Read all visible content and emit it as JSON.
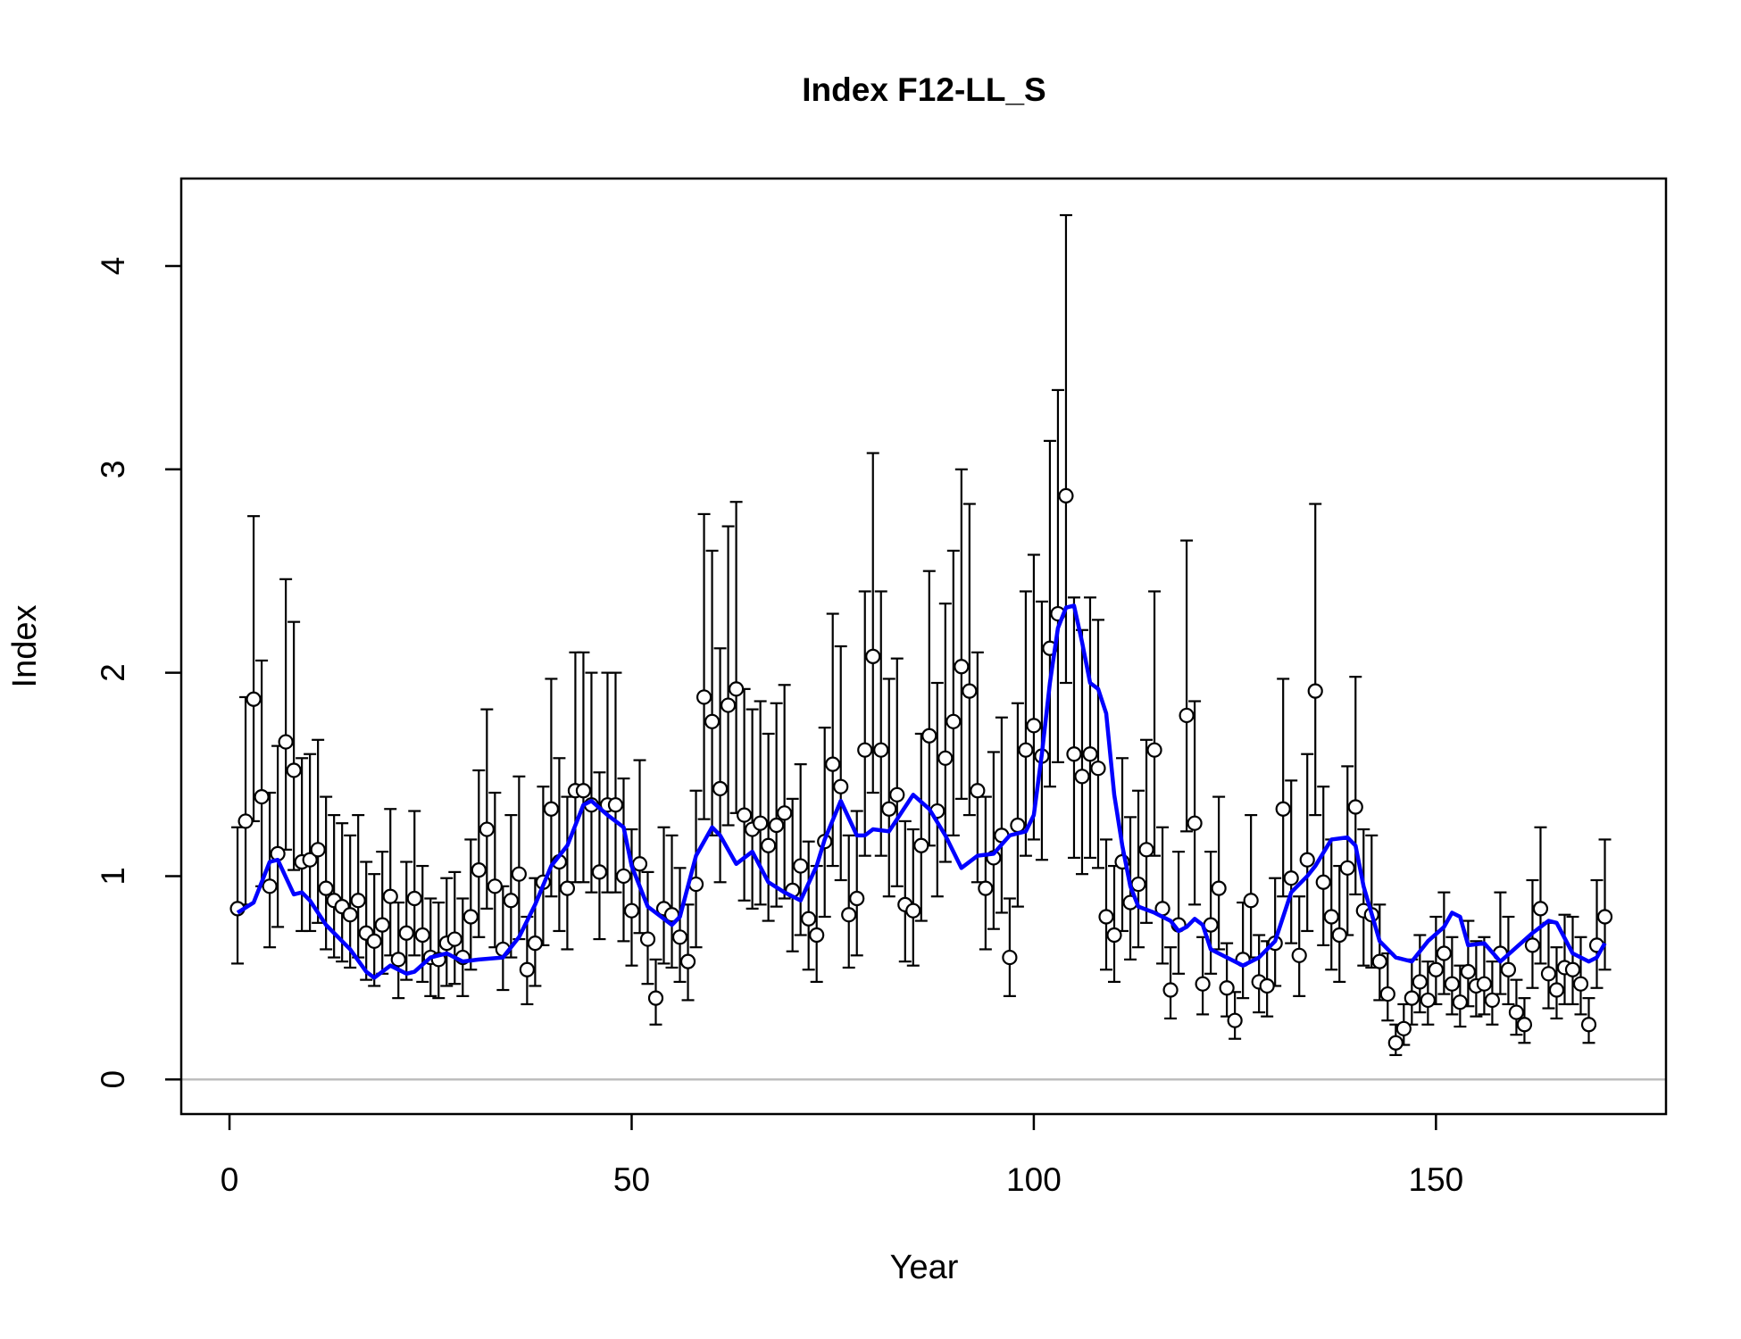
{
  "chart_data": {
    "type": "scatter",
    "title": "Index F12-LL_S",
    "xlabel": "Year",
    "ylabel": "Index",
    "xlim": [
      -6,
      178.6
    ],
    "ylim": [
      -0.17,
      4.43
    ],
    "xticks": [
      0,
      50,
      100,
      150
    ],
    "yticks": [
      0,
      1,
      2,
      3,
      4
    ],
    "reference_line": {
      "value": 0,
      "color": "#bebebe"
    },
    "series": [
      {
        "type": "scatter",
        "color": "#000000",
        "x": [
          1,
          2,
          3,
          4,
          5,
          6,
          7,
          8,
          9,
          10,
          11,
          12,
          13,
          14,
          15,
          16,
          17,
          18,
          19,
          20,
          21,
          22,
          23,
          24,
          25,
          26,
          27,
          28,
          29,
          30,
          31,
          32,
          33,
          34,
          35,
          36,
          37,
          38,
          39,
          40,
          41,
          42,
          43,
          44,
          45,
          46,
          47,
          48,
          49,
          50,
          51,
          52,
          53,
          54,
          55,
          56,
          57,
          58,
          59,
          60,
          61,
          62,
          63,
          64,
          65,
          66,
          67,
          68,
          69,
          70,
          71,
          72,
          73,
          74,
          75,
          76,
          77,
          78,
          79,
          80,
          81,
          82,
          83,
          84,
          85,
          86,
          87,
          88,
          89,
          90,
          91,
          92,
          93,
          94,
          95,
          96,
          97,
          98,
          99,
          100,
          101,
          102,
          103,
          104,
          105,
          106,
          107,
          108,
          109,
          110,
          111,
          112,
          113,
          114,
          115,
          116,
          117,
          118,
          119,
          120,
          121,
          122,
          123,
          124,
          125,
          126,
          127,
          128,
          129,
          130,
          131,
          132,
          133,
          134,
          135,
          136,
          137,
          138,
          139,
          140,
          141,
          142,
          143,
          144,
          145,
          146,
          147,
          148,
          149,
          150,
          151,
          152,
          153,
          154,
          155,
          156,
          157,
          158,
          159,
          160,
          161,
          162,
          163,
          164,
          165,
          166,
          167,
          168,
          169,
          170,
          171
        ],
        "values": [
          0.84,
          1.27,
          1.87,
          1.39,
          0.95,
          1.11,
          1.66,
          1.52,
          1.07,
          1.08,
          1.13,
          0.94,
          0.88,
          0.85,
          0.81,
          0.88,
          0.72,
          0.68,
          0.76,
          0.9,
          0.59,
          0.72,
          0.89,
          0.71,
          0.6,
          0.59,
          0.67,
          0.69,
          0.6,
          0.8,
          1.03,
          1.23,
          0.95,
          0.64,
          0.88,
          1.01,
          0.54,
          0.67,
          0.97,
          1.33,
          1.07,
          0.94,
          1.42,
          1.42,
          1.35,
          1.02,
          1.35,
          1.35,
          1.0,
          0.83,
          1.06,
          0.69,
          0.4,
          0.84,
          0.81,
          0.7,
          0.58,
          0.96,
          1.88,
          1.76,
          1.43,
          1.84,
          1.92,
          1.3,
          1.23,
          1.26,
          1.15,
          1.25,
          1.31,
          0.93,
          1.05,
          0.79,
          0.71,
          1.17,
          1.55,
          1.44,
          0.81,
          0.89,
          1.62,
          2.08,
          1.62,
          1.33,
          1.4,
          0.86,
          0.83,
          1.15,
          1.69,
          1.32,
          1.58,
          1.76,
          2.03,
          1.91,
          1.42,
          0.94,
          1.09,
          1.2,
          0.6,
          1.25,
          1.62,
          1.74,
          1.59,
          2.12,
          2.29,
          2.87,
          1.6,
          1.49,
          1.6,
          1.53,
          0.8,
          0.71,
          1.07,
          0.87,
          0.96,
          1.13,
          1.62,
          0.84,
          0.44,
          0.76,
          1.79,
          1.26,
          0.47,
          0.76,
          0.94,
          0.45,
          0.29,
          0.59,
          0.88,
          0.48,
          0.46,
          0.67,
          1.33,
          0.99,
          0.61,
          1.08,
          1.91,
          0.97,
          0.8,
          0.71,
          1.04,
          1.34,
          0.83,
          0.81,
          0.58,
          0.42,
          0.18,
          0.25,
          0.4,
          0.48,
          0.39,
          0.54,
          0.62,
          0.47,
          0.38,
          0.53,
          0.46,
          0.47,
          0.39,
          0.62,
          0.54,
          0.33,
          0.27,
          0.66,
          0.84,
          0.52,
          0.44,
          0.55,
          0.54,
          0.47,
          0.27,
          0.66,
          0.8
        ],
        "lower": [
          0.57,
          0.86,
          1.27,
          0.95,
          0.65,
          0.75,
          1.13,
          1.03,
          0.73,
          0.73,
          0.77,
          0.64,
          0.6,
          0.58,
          0.55,
          0.6,
          0.49,
          0.46,
          0.52,
          0.61,
          0.4,
          0.49,
          0.61,
          0.48,
          0.41,
          0.4,
          0.46,
          0.47,
          0.41,
          0.54,
          0.7,
          0.84,
          0.65,
          0.44,
          0.6,
          0.69,
          0.37,
          0.46,
          0.66,
          0.9,
          0.73,
          0.64,
          0.97,
          0.97,
          0.92,
          0.69,
          0.92,
          0.92,
          0.68,
          0.56,
          0.72,
          0.47,
          0.27,
          0.57,
          0.55,
          0.48,
          0.39,
          0.65,
          1.28,
          1.2,
          0.97,
          1.25,
          1.31,
          0.88,
          0.84,
          0.86,
          0.78,
          0.85,
          0.89,
          0.63,
          0.71,
          0.54,
          0.48,
          0.8,
          1.05,
          0.98,
          0.55,
          0.61,
          1.1,
          1.41,
          1.1,
          0.9,
          0.95,
          0.58,
          0.56,
          0.78,
          1.15,
          0.9,
          1.07,
          1.2,
          1.38,
          1.3,
          0.97,
          0.64,
          0.74,
          0.82,
          0.41,
          0.85,
          1.1,
          1.18,
          1.08,
          1.44,
          1.56,
          1.95,
          1.09,
          1.01,
          1.09,
          1.04,
          0.54,
          0.48,
          0.73,
          0.59,
          0.65,
          0.77,
          1.1,
          0.57,
          0.3,
          0.52,
          1.22,
          0.86,
          0.32,
          0.52,
          0.64,
          0.31,
          0.2,
          0.4,
          0.6,
          0.33,
          0.31,
          0.46,
          0.9,
          0.67,
          0.41,
          0.73,
          1.3,
          0.66,
          0.54,
          0.48,
          0.71,
          0.91,
          0.56,
          0.55,
          0.39,
          0.29,
          0.12,
          0.17,
          0.27,
          0.33,
          0.27,
          0.37,
          0.42,
          0.32,
          0.26,
          0.36,
          0.31,
          0.32,
          0.27,
          0.42,
          0.37,
          0.22,
          0.18,
          0.45,
          0.57,
          0.35,
          0.3,
          0.37,
          0.37,
          0.32,
          0.18,
          0.45,
          0.54
        ],
        "upper": [
          1.24,
          1.88,
          2.77,
          2.06,
          1.41,
          1.64,
          2.46,
          2.25,
          1.58,
          1.6,
          1.67,
          1.39,
          1.3,
          1.26,
          1.2,
          1.3,
          1.07,
          1.01,
          1.12,
          1.33,
          0.87,
          1.07,
          1.32,
          1.05,
          0.89,
          0.87,
          0.99,
          1.02,
          0.89,
          1.18,
          1.52,
          1.82,
          1.41,
          0.95,
          1.3,
          1.49,
          0.8,
          0.99,
          1.44,
          1.97,
          1.58,
          1.39,
          2.1,
          2.1,
          2.0,
          1.51,
          2.0,
          2.0,
          1.48,
          1.23,
          1.57,
          1.02,
          0.59,
          1.24,
          1.2,
          1.04,
          0.86,
          1.42,
          2.78,
          2.6,
          2.12,
          2.72,
          2.84,
          1.92,
          1.82,
          1.86,
          1.7,
          1.85,
          1.94,
          1.38,
          1.55,
          1.17,
          1.05,
          1.73,
          2.29,
          2.13,
          1.2,
          1.32,
          2.4,
          3.08,
          2.4,
          1.97,
          2.07,
          1.27,
          1.23,
          1.7,
          2.5,
          1.95,
          2.34,
          2.6,
          3.0,
          2.83,
          2.1,
          1.39,
          1.61,
          1.78,
          0.89,
          1.85,
          2.4,
          2.58,
          2.35,
          3.14,
          3.39,
          4.25,
          2.37,
          2.21,
          2.37,
          2.26,
          1.18,
          1.05,
          1.58,
          1.29,
          1.42,
          1.67,
          2.4,
          1.24,
          0.65,
          1.12,
          2.65,
          1.86,
          0.7,
          1.12,
          1.39,
          0.67,
          0.43,
          0.87,
          1.3,
          0.71,
          0.68,
          0.99,
          1.97,
          1.47,
          0.9,
          1.6,
          2.83,
          1.44,
          1.18,
          1.05,
          1.54,
          1.98,
          1.23,
          1.2,
          0.86,
          0.62,
          0.27,
          0.37,
          0.59,
          0.71,
          0.58,
          0.8,
          0.92,
          0.7,
          0.56,
          0.78,
          0.68,
          0.7,
          0.58,
          0.92,
          0.8,
          0.49,
          0.4,
          0.98,
          1.24,
          0.77,
          0.65,
          0.81,
          0.8,
          0.7,
          0.4,
          0.98,
          1.18
        ]
      },
      {
        "type": "line",
        "color": "#0000ff",
        "x": [
          1,
          3,
          5,
          6,
          8,
          9,
          10,
          12,
          15,
          17,
          18,
          20,
          22,
          23,
          25,
          27,
          29,
          31,
          34,
          36,
          38,
          40,
          42,
          44,
          45,
          47,
          49,
          50,
          52,
          55,
          56,
          58,
          60,
          61,
          63,
          65,
          67,
          69,
          71,
          73,
          74,
          76,
          78,
          79,
          80,
          82,
          83,
          85,
          87,
          89,
          91,
          93,
          95,
          97,
          99,
          100,
          101,
          102,
          103,
          104,
          105,
          106,
          107,
          108,
          109,
          110,
          111,
          112,
          113,
          115,
          117,
          118,
          119,
          120,
          121,
          122,
          124,
          126,
          128,
          130,
          132,
          134,
          135,
          137,
          139,
          140,
          141,
          143,
          145,
          147,
          149,
          151,
          152,
          153,
          154,
          156,
          158,
          160,
          162,
          164,
          165,
          167,
          169,
          170,
          171
        ],
        "values": [
          0.82,
          0.87,
          1.07,
          1.08,
          0.91,
          0.92,
          0.88,
          0.76,
          0.64,
          0.53,
          0.5,
          0.56,
          0.52,
          0.53,
          0.6,
          0.62,
          0.58,
          0.59,
          0.6,
          0.7,
          0.86,
          1.05,
          1.15,
          1.35,
          1.37,
          1.3,
          1.24,
          1.05,
          0.85,
          0.76,
          0.8,
          1.1,
          1.24,
          1.2,
          1.06,
          1.12,
          0.97,
          0.92,
          0.88,
          1.05,
          1.18,
          1.37,
          1.2,
          1.2,
          1.23,
          1.22,
          1.28,
          1.4,
          1.33,
          1.2,
          1.04,
          1.1,
          1.11,
          1.2,
          1.22,
          1.3,
          1.6,
          1.95,
          2.22,
          2.32,
          2.33,
          2.15,
          1.95,
          1.92,
          1.8,
          1.4,
          1.15,
          0.95,
          0.85,
          0.82,
          0.78,
          0.73,
          0.75,
          0.79,
          0.76,
          0.64,
          0.6,
          0.56,
          0.6,
          0.68,
          0.92,
          1.0,
          1.05,
          1.18,
          1.19,
          1.15,
          0.95,
          0.68,
          0.6,
          0.58,
          0.68,
          0.75,
          0.82,
          0.8,
          0.66,
          0.67,
          0.58,
          0.65,
          0.72,
          0.78,
          0.77,
          0.62,
          0.58,
          0.6,
          0.67
        ]
      }
    ]
  }
}
